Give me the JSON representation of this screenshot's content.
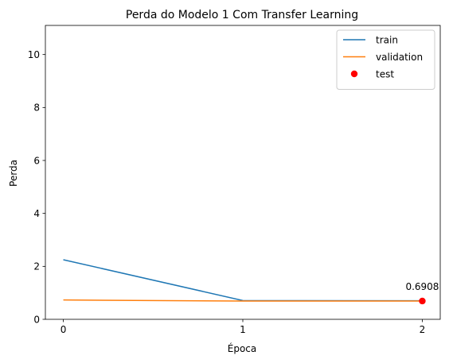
{
  "chart_data": {
    "type": "line",
    "title": "Perda do Modelo 1 Com Transfer Learning",
    "xlabel": "Época",
    "ylabel": "Perda",
    "x": [
      0,
      1,
      2
    ],
    "xlim": [
      -0.1,
      2.1
    ],
    "ylim": [
      0,
      11.1
    ],
    "xticks": [
      "0",
      "1",
      "2"
    ],
    "yticks": [
      "0",
      "2",
      "4",
      "6",
      "8",
      "10"
    ],
    "grid": false,
    "legend_position": "top-right",
    "series": [
      {
        "name": "train",
        "type": "line",
        "color": "#1f77b4",
        "values": [
          2.25,
          0.71,
          0.7
        ]
      },
      {
        "name": "validation",
        "type": "line",
        "color": "#ff7f0e",
        "values": [
          0.73,
          0.69,
          0.69
        ]
      },
      {
        "name": "test",
        "type": "scatter",
        "color": "#ff0000",
        "points": [
          {
            "x": 2,
            "y": 0.6908
          }
        ]
      }
    ],
    "annotations": [
      {
        "text": "0.6908",
        "x": 2,
        "y": 0.6908
      }
    ]
  }
}
